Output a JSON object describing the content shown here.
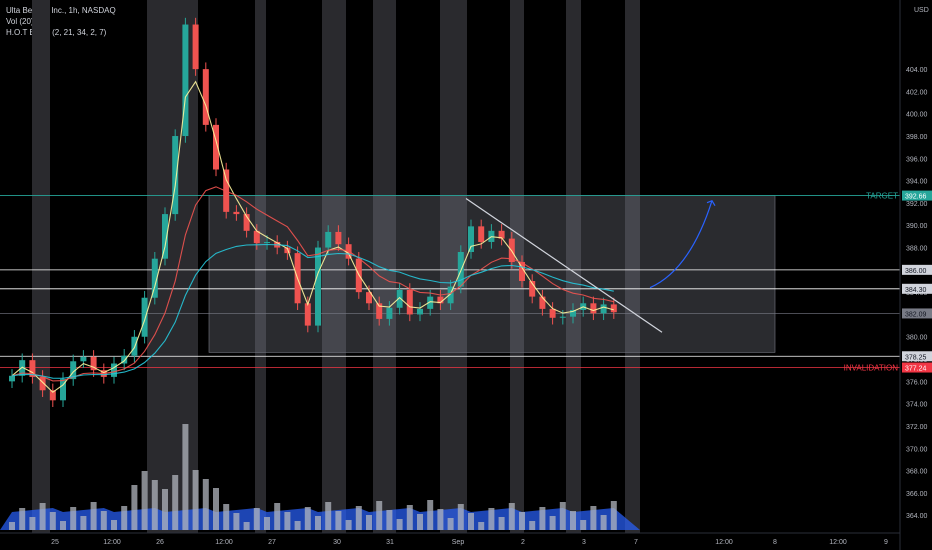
{
  "legend": {
    "symbol": "Ulta Beauty, Inc., 1h, NASDAQ",
    "vol": "Vol (20)",
    "ema": "H.O.T Emas (2, 21, 34, 2, 7)"
  },
  "chart_data": {
    "type": "candlestick",
    "currency": "USD",
    "y_range": [
      362.4,
      410.2
    ],
    "y_ticks": [
      364.0,
      366.0,
      368.0,
      370.0,
      372.0,
      374.0,
      376.0,
      378.0,
      380.0,
      382.0,
      384.0,
      386.0,
      388.0,
      390.0,
      392.0,
      394.0,
      396.0,
      398.0,
      400.0,
      402.0,
      404.0
    ],
    "x_ticks": [
      "25",
      "12:00",
      "26",
      "12:00",
      "27",
      "30",
      "31",
      "Sep",
      "2",
      "3",
      "7",
      "12:00",
      "8",
      "12:00",
      "9"
    ],
    "price_levels": [
      {
        "price": 392.66,
        "label": "TARGET",
        "color": "#26a69a"
      },
      {
        "price": 386.0,
        "color": "#ffffff"
      },
      {
        "price": 384.3,
        "color": "#ffffff"
      },
      {
        "price": 382.09,
        "color": "#787b86"
      },
      {
        "price": 378.25,
        "color": "#ffffff"
      },
      {
        "price": 377.24,
        "label": "INVALIDATION",
        "color": "#f23645"
      }
    ],
    "range_box": {
      "from_price": 378.6,
      "to_price": 392.66
    },
    "candles_sample": {
      "up_color": "#26a69a",
      "down_color": "#ef5350",
      "closes_approx": [
        376.5,
        377.9,
        376.4,
        375.2,
        374.3,
        376.2,
        377.8,
        378.2,
        377.0,
        376.4,
        377.6,
        378.3,
        380.0,
        383.5,
        387.0,
        391.0,
        398.0,
        408.0,
        404.0,
        399.0,
        395.0,
        391.2,
        391.0,
        389.5,
        388.4,
        388.5,
        388.0,
        387.5,
        383.0,
        381.0,
        388.0,
        389.4,
        388.3,
        387.0,
        384.0,
        383.0,
        381.6,
        382.6,
        384.2,
        382.0,
        382.5,
        383.6,
        383.0,
        384.5,
        387.6,
        389.9,
        388.5,
        389.5,
        388.8,
        386.7,
        385.0,
        383.6,
        382.5,
        381.7,
        381.8,
        382.4,
        383.0,
        382.1,
        382.9,
        382.2
      ]
    },
    "colors": {
      "background": "#000000",
      "vol_up": "#b2b5be",
      "vol_down": "#b2b5be",
      "vol_ema_fill": "#2962ff",
      "ema_fast": "#fff59d",
      "ema_mid": "#ef5350",
      "ema_slow": "#26c6da",
      "trendline": "#d1d4dc",
      "projection": "#2962ff",
      "session_band": "#2a2a2e"
    }
  }
}
